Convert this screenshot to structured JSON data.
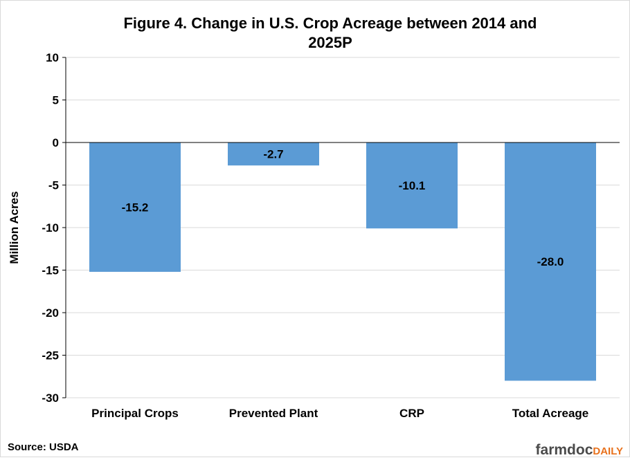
{
  "chart_data": {
    "type": "bar",
    "title_line1": "Figure 4. Change in U.S. Crop Acreage between 2014 and",
    "title_line2": "2025P",
    "xlabel": "",
    "ylabel": "Million Acres",
    "categories": [
      "Principal Crops",
      "Prevented Plant",
      "CRP",
      "Total Acreage"
    ],
    "values": [
      -15.2,
      -2.7,
      -10.1,
      -28.0
    ],
    "data_labels": [
      "-15.2",
      "-2.7",
      "-10.1",
      "-28.0"
    ],
    "ylim": [
      -30,
      10
    ],
    "yticks": [
      10,
      5,
      0,
      -5,
      -10,
      -15,
      -20,
      -25,
      -30
    ],
    "grid": true,
    "legend": "none",
    "bar_color": "#5b9bd5"
  },
  "footer": {
    "source": "Source: USDA",
    "brand_farmdoc": "farmdoc",
    "brand_daily": "DAILY",
    "brand_color": "#e8711c"
  }
}
